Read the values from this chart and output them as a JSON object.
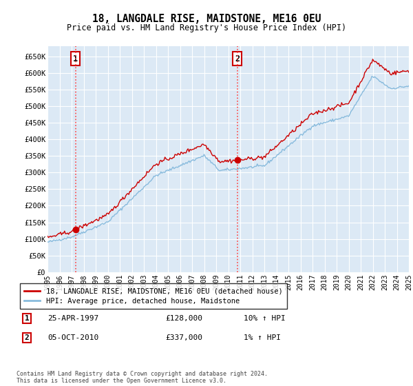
{
  "title": "18, LANGDALE RISE, MAIDSTONE, ME16 0EU",
  "subtitle": "Price paid vs. HM Land Registry's House Price Index (HPI)",
  "ylabel_ticks": [
    "£0",
    "£50K",
    "£100K",
    "£150K",
    "£200K",
    "£250K",
    "£300K",
    "£350K",
    "£400K",
    "£450K",
    "£500K",
    "£550K",
    "£600K",
    "£650K"
  ],
  "ylim": [
    0,
    680000
  ],
  "ytick_vals": [
    0,
    50000,
    100000,
    150000,
    200000,
    250000,
    300000,
    350000,
    400000,
    450000,
    500000,
    550000,
    600000,
    650000
  ],
  "xmin_year": 1995,
  "xmax_year": 2025,
  "xtick_years": [
    1995,
    1996,
    1997,
    1998,
    1999,
    2000,
    2001,
    2002,
    2003,
    2004,
    2005,
    2006,
    2007,
    2008,
    2009,
    2010,
    2011,
    2012,
    2013,
    2014,
    2015,
    2016,
    2017,
    2018,
    2019,
    2020,
    2021,
    2022,
    2023,
    2024,
    2025
  ],
  "background_color": "#dce9f5",
  "plot_bg_color": "#dce9f5",
  "grid_color": "#ffffff",
  "transaction1_x": 1997.32,
  "transaction1_y": 128000,
  "transaction1_label": "1",
  "transaction2_x": 2010.75,
  "transaction2_y": 337000,
  "transaction2_label": "2",
  "vline_color": "#ff4444",
  "vline_style": ":",
  "dot_color": "#cc0000",
  "line_color_red": "#cc0000",
  "line_color_blue": "#88bbdd",
  "legend_label_red": "18, LANGDALE RISE, MAIDSTONE, ME16 0EU (detached house)",
  "legend_label_blue": "HPI: Average price, detached house, Maidstone",
  "note1_label": "1",
  "note1_date": "25-APR-1997",
  "note1_price": "£128,000",
  "note1_hpi": "10% ↑ HPI",
  "note2_label": "2",
  "note2_date": "05-OCT-2010",
  "note2_price": "£337,000",
  "note2_hpi": "1% ↑ HPI",
  "footer": "Contains HM Land Registry data © Crown copyright and database right 2024.\nThis data is licensed under the Open Government Licence v3.0."
}
